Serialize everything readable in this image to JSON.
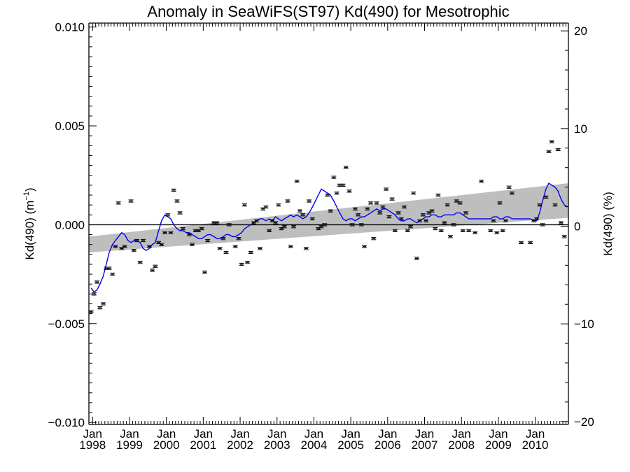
{
  "chart_data": {
    "type": "scatter",
    "title": "Anomaly in SeaWiFS(ST97) Kd(490) for Mesotrophic",
    "ylabel_left": {
      "text": "Kd(490) (m",
      "superscript": "−1",
      "suffix": ")"
    },
    "ylabel_right": "Kd(490) (%)",
    "xlim": [
      1997.9,
      2010.9
    ],
    "ylim_left": [
      -0.0101,
      0.0102
    ],
    "ylim_right": [
      -20.3,
      20.8
    ],
    "y_ticks_left": [
      {
        "value": 0.01,
        "label": "0.010"
      },
      {
        "value": 0.005,
        "label": "0.005"
      },
      {
        "value": 0.0,
        "label": "0.000"
      },
      {
        "value": -0.005,
        "label": "−0.005"
      },
      {
        "value": -0.01,
        "label": "−0.010"
      }
    ],
    "y_ticks_right": [
      {
        "value": 20,
        "label": "20"
      },
      {
        "value": 10,
        "label": "10"
      },
      {
        "value": 0,
        "label": "0"
      },
      {
        "value": -10,
        "label": "−10"
      },
      {
        "value": -20,
        "label": "−20"
      }
    ],
    "x_ticks": [
      {
        "value": 1998,
        "month": "Jan",
        "year": "1998"
      },
      {
        "value": 1999,
        "month": "Jan",
        "year": "1999"
      },
      {
        "value": 2000,
        "month": "Jan",
        "year": "2000"
      },
      {
        "value": 2001,
        "month": "Jan",
        "year": "2001"
      },
      {
        "value": 2002,
        "month": "Jan",
        "year": "2002"
      },
      {
        "value": 2003,
        "month": "Jan",
        "year": "2003"
      },
      {
        "value": 2004,
        "month": "Jan",
        "year": "2004"
      },
      {
        "value": 2005,
        "month": "Jan",
        "year": "2005"
      },
      {
        "value": 2006,
        "month": "Jan",
        "year": "2006"
      },
      {
        "value": 2007,
        "month": "Jan",
        "year": "2007"
      },
      {
        "value": 2008,
        "month": "Jan",
        "year": "2008"
      },
      {
        "value": 2009,
        "month": "Jan",
        "year": "2009"
      },
      {
        "value": 2010,
        "month": "Jan",
        "year": "2010"
      }
    ],
    "zero_line": 0,
    "trend_band": {
      "x": [
        1997.9,
        2010.9
      ],
      "lower": [
        -0.0014,
        0.00035
      ],
      "upper": [
        -0.0006,
        0.0021
      ],
      "color": "#bebebe"
    },
    "points": [
      {
        "x": 1997.96,
        "y": -0.0044
      },
      {
        "x": 1998.04,
        "y": -0.0035
      },
      {
        "x": 1998.12,
        "y": -0.0029
      },
      {
        "x": 1998.2,
        "y": -0.0042
      },
      {
        "x": 1998.29,
        "y": -0.004
      },
      {
        "x": 1998.37,
        "y": -0.0022
      },
      {
        "x": 1998.45,
        "y": -0.0022
      },
      {
        "x": 1998.54,
        "y": -0.0025
      },
      {
        "x": 1998.62,
        "y": -0.0011
      },
      {
        "x": 1998.7,
        "y": 0.0011
      },
      {
        "x": 1998.79,
        "y": -0.0012
      },
      {
        "x": 1998.87,
        "y": -0.0011
      },
      {
        "x": 1999.04,
        "y": 0.0012
      },
      {
        "x": 1999.12,
        "y": -0.0013
      },
      {
        "x": 1999.2,
        "y": -0.0008
      },
      {
        "x": 1999.29,
        "y": -0.0019
      },
      {
        "x": 1999.37,
        "y": -0.0008
      },
      {
        "x": 1999.54,
        "y": -0.0011
      },
      {
        "x": 1999.62,
        "y": -0.0023
      },
      {
        "x": 1999.7,
        "y": -0.0021
      },
      {
        "x": 1999.79,
        "y": -0.0009
      },
      {
        "x": 1999.87,
        "y": -0.001
      },
      {
        "x": 1999.96,
        "y": -0.0004
      },
      {
        "x": 2000.04,
        "y": 0.0005
      },
      {
        "x": 2000.12,
        "y": -0.0004
      },
      {
        "x": 2000.2,
        "y": 0.00175
      },
      {
        "x": 2000.29,
        "y": 0.0012
      },
      {
        "x": 2000.37,
        "y": 0.0006
      },
      {
        "x": 2000.45,
        "y": -0.0002
      },
      {
        "x": 2000.62,
        "y": -0.0005
      },
      {
        "x": 2000.7,
        "y": -0.001
      },
      {
        "x": 2000.79,
        "y": -0.0003
      },
      {
        "x": 2000.87,
        "y": -0.0003
      },
      {
        "x": 2000.96,
        "y": -0.0002
      },
      {
        "x": 2001.04,
        "y": -0.0024
      },
      {
        "x": 2001.12,
        "y": -0.0008
      },
      {
        "x": 2001.29,
        "y": 0.0001
      },
      {
        "x": 2001.37,
        "y": 0.0001
      },
      {
        "x": 2001.45,
        "y": -0.0012
      },
      {
        "x": 2001.54,
        "y": -0.0007
      },
      {
        "x": 2001.62,
        "y": -0.0014
      },
      {
        "x": 2001.7,
        "y": 0.0
      },
      {
        "x": 2001.87,
        "y": -0.0011
      },
      {
        "x": 2001.96,
        "y": -0.0007
      },
      {
        "x": 2002.04,
        "y": -0.002
      },
      {
        "x": 2002.12,
        "y": 0.001
      },
      {
        "x": 2002.2,
        "y": -0.0019
      },
      {
        "x": 2002.29,
        "y": -0.0014
      },
      {
        "x": 2002.37,
        "y": 0.0001
      },
      {
        "x": 2002.45,
        "y": 0.0002
      },
      {
        "x": 2002.54,
        "y": -0.0012
      },
      {
        "x": 2002.62,
        "y": 0.0008
      },
      {
        "x": 2002.7,
        "y": 0.0009
      },
      {
        "x": 2002.79,
        "y": -0.0003
      },
      {
        "x": 2002.87,
        "y": 0.0002
      },
      {
        "x": 2002.96,
        "y": 0.0001
      },
      {
        "x": 2003.04,
        "y": 0.001
      },
      {
        "x": 2003.12,
        "y": -0.0002
      },
      {
        "x": 2003.2,
        "y": -0.0001
      },
      {
        "x": 2003.29,
        "y": 0.0012
      },
      {
        "x": 2003.37,
        "y": -0.0011
      },
      {
        "x": 2003.45,
        "y": -0.0001
      },
      {
        "x": 2003.54,
        "y": 0.0022
      },
      {
        "x": 2003.62,
        "y": 0.0007
      },
      {
        "x": 2003.7,
        "y": 0.0005
      },
      {
        "x": 2003.79,
        "y": -0.0012
      },
      {
        "x": 2003.87,
        "y": 0.0012
      },
      {
        "x": 2003.96,
        "y": 0.0003
      },
      {
        "x": 2004.12,
        "y": -0.0002
      },
      {
        "x": 2004.2,
        "y": -0.0001
      },
      {
        "x": 2004.29,
        "y": 0.0
      },
      {
        "x": 2004.37,
        "y": 0.0015
      },
      {
        "x": 2004.45,
        "y": 0.0007
      },
      {
        "x": 2004.54,
        "y": 0.0024
      },
      {
        "x": 2004.62,
        "y": 0.0016
      },
      {
        "x": 2004.7,
        "y": 0.002
      },
      {
        "x": 2004.79,
        "y": 0.002
      },
      {
        "x": 2004.87,
        "y": 0.0029
      },
      {
        "x": 2004.96,
        "y": 0.0017
      },
      {
        "x": 2005.04,
        "y": 0.0
      },
      {
        "x": 2005.12,
        "y": 0.0008
      },
      {
        "x": 2005.2,
        "y": 0.0005
      },
      {
        "x": 2005.29,
        "y": 0.0
      },
      {
        "x": 2005.37,
        "y": -0.0011
      },
      {
        "x": 2005.45,
        "y": 0.0008
      },
      {
        "x": 2005.54,
        "y": 0.0011
      },
      {
        "x": 2005.62,
        "y": -0.0007
      },
      {
        "x": 2005.7,
        "y": 0.0011
      },
      {
        "x": 2005.79,
        "y": 0.0006
      },
      {
        "x": 2005.87,
        "y": 0.0009
      },
      {
        "x": 2005.96,
        "y": 0.0018
      },
      {
        "x": 2006.04,
        "y": 0.0004
      },
      {
        "x": 2006.12,
        "y": 0.0013
      },
      {
        "x": 2006.2,
        "y": -0.0003
      },
      {
        "x": 2006.29,
        "y": 0.0006
      },
      {
        "x": 2006.37,
        "y": 0.0003
      },
      {
        "x": 2006.45,
        "y": 0.0009
      },
      {
        "x": 2006.54,
        "y": -0.0003
      },
      {
        "x": 2006.62,
        "y": -0.0001
      },
      {
        "x": 2006.7,
        "y": 0.0016
      },
      {
        "x": 2006.79,
        "y": -0.0017
      },
      {
        "x": 2006.87,
        "y": 0.0002
      },
      {
        "x": 2006.96,
        "y": 0.0005
      },
      {
        "x": 2007.04,
        "y": 0.0002
      },
      {
        "x": 2007.12,
        "y": 0.0006
      },
      {
        "x": 2007.2,
        "y": 0.0007
      },
      {
        "x": 2007.29,
        "y": -0.0002
      },
      {
        "x": 2007.37,
        "y": 0.0015
      },
      {
        "x": 2007.45,
        "y": -0.0003
      },
      {
        "x": 2007.54,
        "y": 0.0001
      },
      {
        "x": 2007.62,
        "y": 0.001
      },
      {
        "x": 2007.7,
        "y": -0.0006
      },
      {
        "x": 2007.79,
        "y": 0.0
      },
      {
        "x": 2007.87,
        "y": 0.0012
      },
      {
        "x": 2007.96,
        "y": 0.0011
      },
      {
        "x": 2008.04,
        "y": -0.0003
      },
      {
        "x": 2008.12,
        "y": 0.0006
      },
      {
        "x": 2008.2,
        "y": -0.0003
      },
      {
        "x": 2008.37,
        "y": -0.0004
      },
      {
        "x": 2008.54,
        "y": 0.0022
      },
      {
        "x": 2008.79,
        "y": -0.0003
      },
      {
        "x": 2008.87,
        "y": 0.0002
      },
      {
        "x": 2008.96,
        "y": -0.0004
      },
      {
        "x": 2009.04,
        "y": 0.0011
      },
      {
        "x": 2009.12,
        "y": -0.0003
      },
      {
        "x": 2009.2,
        "y": 0.0002
      },
      {
        "x": 2009.29,
        "y": 0.0019
      },
      {
        "x": 2009.37,
        "y": 0.0016
      },
      {
        "x": 2009.62,
        "y": -0.0009
      },
      {
        "x": 2009.87,
        "y": -0.0009
      },
      {
        "x": 2009.96,
        "y": 0.0002
      },
      {
        "x": 2010.04,
        "y": 0.0003
      },
      {
        "x": 2010.12,
        "y": 0.001
      },
      {
        "x": 2010.2,
        "y": 0.0
      },
      {
        "x": 2010.29,
        "y": 0.0014
      },
      {
        "x": 2010.37,
        "y": 0.0037
      },
      {
        "x": 2010.45,
        "y": 0.0042
      },
      {
        "x": 2010.54,
        "y": 0.001
      },
      {
        "x": 2010.62,
        "y": 0.0038
      },
      {
        "x": 2010.7,
        "y": 0.0001
      },
      {
        "x": 2010.79,
        "y": -0.0006
      }
    ],
    "smoothed_line": {
      "color": "#0000ee",
      "x": [
        1997.96,
        1998.04,
        1998.12,
        1998.2,
        1998.29,
        1998.37,
        1998.45,
        1998.54,
        1998.62,
        1998.7,
        1998.79,
        1998.87,
        1998.96,
        1999.04,
        1999.12,
        1999.2,
        1999.29,
        1999.37,
        1999.45,
        1999.54,
        1999.62,
        1999.7,
        1999.79,
        1999.87,
        1999.96,
        2000.04,
        2000.12,
        2000.2,
        2000.29,
        2000.37,
        2000.45,
        2000.54,
        2000.62,
        2000.7,
        2000.79,
        2000.87,
        2000.96,
        2001.04,
        2001.12,
        2001.2,
        2001.29,
        2001.37,
        2001.45,
        2001.54,
        2001.62,
        2001.7,
        2001.79,
        2001.87,
        2001.96,
        2002.04,
        2002.12,
        2002.2,
        2002.29,
        2002.37,
        2002.45,
        2002.54,
        2002.62,
        2002.7,
        2002.79,
        2002.87,
        2002.96,
        2003.04,
        2003.12,
        2003.2,
        2003.29,
        2003.37,
        2003.45,
        2003.54,
        2003.62,
        2003.7,
        2003.79,
        2003.87,
        2003.96,
        2004.04,
        2004.12,
        2004.2,
        2004.29,
        2004.37,
        2004.45,
        2004.54,
        2004.62,
        2004.7,
        2004.79,
        2004.87,
        2004.96,
        2005.04,
        2005.12,
        2005.2,
        2005.29,
        2005.37,
        2005.45,
        2005.54,
        2005.62,
        2005.7,
        2005.79,
        2005.87,
        2005.96,
        2006.04,
        2006.12,
        2006.2,
        2006.29,
        2006.37,
        2006.45,
        2006.54,
        2006.62,
        2006.7,
        2006.79,
        2006.87,
        2006.96,
        2007.04,
        2007.12,
        2007.2,
        2007.29,
        2007.37,
        2007.45,
        2007.54,
        2007.62,
        2007.7,
        2007.79,
        2007.87,
        2007.96,
        2008.04,
        2008.12,
        2008.2,
        2008.37,
        2008.54,
        2008.79,
        2008.87,
        2008.96,
        2009.04,
        2009.12,
        2009.2,
        2009.29,
        2009.37,
        2009.62,
        2009.87,
        2009.96,
        2010.04,
        2010.12,
        2010.2,
        2010.29,
        2010.37,
        2010.45,
        2010.54,
        2010.62,
        2010.7,
        2010.79,
        2010.87
      ],
      "y": [
        -0.0032,
        -0.0034,
        -0.0033,
        -0.003,
        -0.0026,
        -0.002,
        -0.0014,
        -0.001,
        -0.0008,
        -0.0006,
        -0.0004,
        -0.0005,
        -0.0008,
        -0.0009,
        -0.0008,
        -0.0008,
        -0.0009,
        -0.0012,
        -0.0013,
        -0.0012,
        -0.001,
        -0.0009,
        -0.0003,
        0.0002,
        0.0005,
        0.0004,
        0.0003,
        0.0,
        -0.0002,
        -0.0003,
        -0.0003,
        -0.0004,
        -0.0004,
        -0.0005,
        -0.0006,
        -0.0007,
        -0.0007,
        -0.0006,
        -0.0005,
        -0.0005,
        -0.0006,
        -0.0007,
        -0.0007,
        -0.0006,
        -0.0005,
        -0.0005,
        -0.0006,
        -0.0006,
        -0.0005,
        -0.0004,
        -0.0002,
        -0.0001,
        0.0,
        0.0001,
        0.0002,
        0.0003,
        0.0003,
        0.0002,
        0.0003,
        0.0002,
        0.0004,
        0.0003,
        0.0002,
        0.0003,
        0.0004,
        0.0005,
        0.0004,
        0.0005,
        0.0004,
        0.0003,
        0.0004,
        0.0006,
        0.0009,
        0.0012,
        0.0015,
        0.0018,
        0.0017,
        0.0016,
        0.0015,
        0.0012,
        0.0009,
        0.0006,
        0.0003,
        0.0002,
        0.0003,
        0.0003,
        0.0002,
        0.0003,
        0.0004,
        0.0004,
        0.0005,
        0.0006,
        0.0007,
        0.0008,
        0.0007,
        0.0008,
        0.0008,
        0.0007,
        0.0006,
        0.0005,
        0.0003,
        0.0002,
        0.0002,
        0.0003,
        0.0003,
        0.0002,
        0.0001,
        0.0002,
        0.0003,
        0.0004,
        0.0004,
        0.0005,
        0.0005,
        0.0004,
        0.0004,
        0.0005,
        0.0005,
        0.0005,
        0.0005,
        0.0006,
        0.0006,
        0.0005,
        0.0004,
        0.0003,
        0.0003,
        0.0003,
        0.0003,
        0.0004,
        0.0004,
        0.0003,
        0.0003,
        0.0004,
        0.0004,
        0.0003,
        0.0003,
        0.0003,
        0.0002,
        0.0002,
        0.0006,
        0.0012,
        0.0018,
        0.0021,
        0.002,
        0.0019,
        0.0017,
        0.0013,
        0.001,
        0.0009
      ]
    }
  }
}
